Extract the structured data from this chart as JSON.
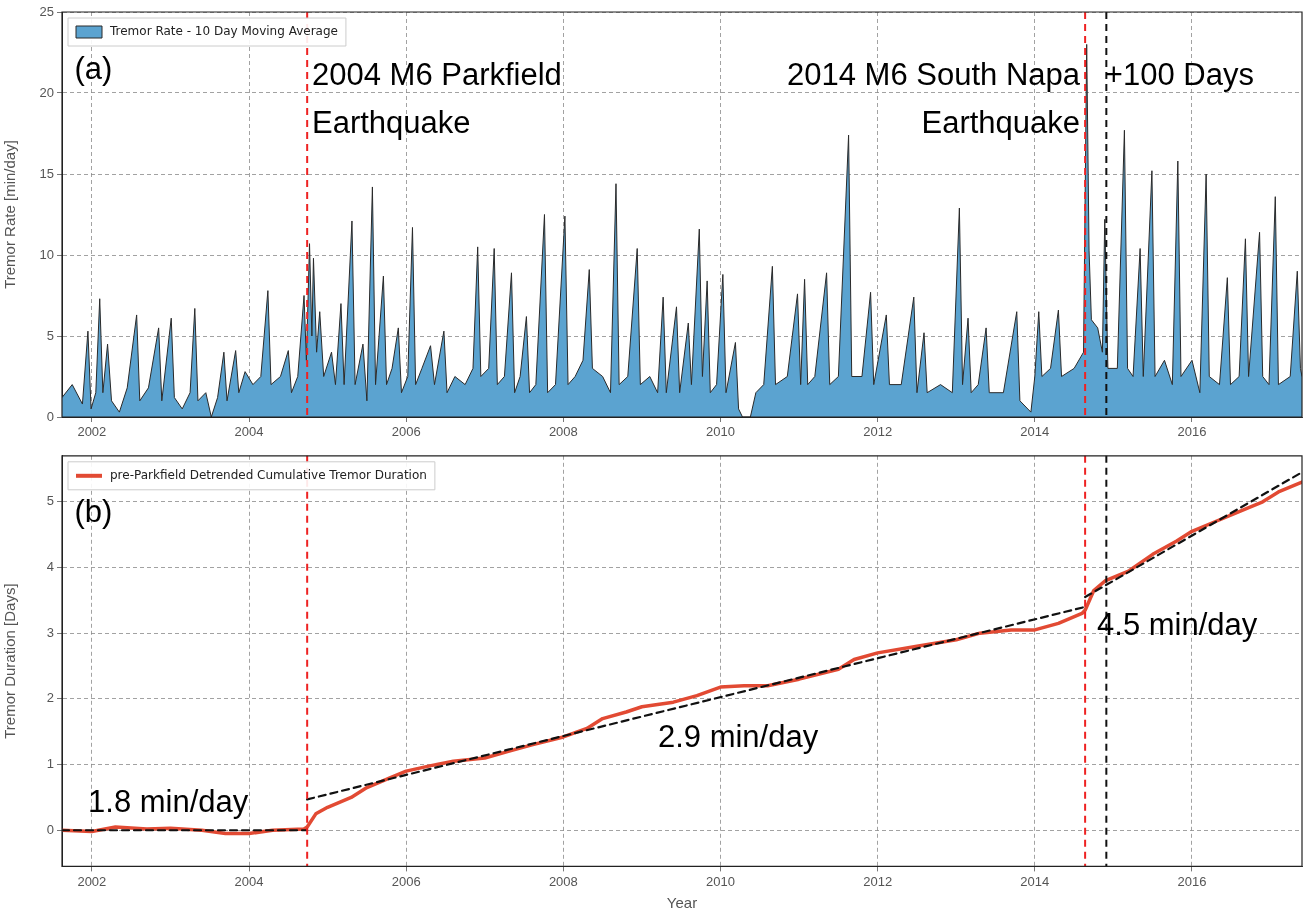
{
  "chart_data": [
    {
      "type": "area",
      "ylabel": "Tremor Rate [min/day]",
      "xlim": [
        2001.62,
        2017.4
      ],
      "xticks": [
        2002,
        2004,
        2006,
        2008,
        2010,
        2012,
        2014,
        2016
      ],
      "ylim": [
        0,
        25
      ],
      "yticks": [
        0,
        5,
        10,
        15,
        20,
        25
      ],
      "grid": true,
      "legend": "top left",
      "series": [
        {
          "name": "Tremor Rate - 10 Day Moving Average",
          "color": "#5ba3d0",
          "x": [
            2001.62,
            2001.75,
            2001.88,
            2001.95,
            2001.99,
            2002.05,
            2002.1,
            2002.14,
            2002.2,
            2002.25,
            2002.35,
            2002.45,
            2002.57,
            2002.61,
            2002.72,
            2002.85,
            2002.89,
            2003.01,
            2003.05,
            2003.15,
            2003.25,
            2003.31,
            2003.35,
            2003.45,
            2003.52,
            2003.6,
            2003.68,
            2003.72,
            2003.83,
            2003.87,
            2003.95,
            2004.05,
            2004.15,
            2004.24,
            2004.28,
            2004.4,
            2004.5,
            2004.54,
            2004.62,
            2004.7,
            2004.73,
            2004.77,
            2004.8,
            2004.82,
            2004.86,
            2004.9,
            2004.95,
            2005.05,
            2005.1,
            2005.17,
            2005.21,
            2005.31,
            2005.35,
            2005.45,
            2005.5,
            2005.57,
            2005.61,
            2005.71,
            2005.75,
            2005.82,
            2005.9,
            2005.94,
            2006.02,
            2006.08,
            2006.12,
            2006.2,
            2006.31,
            2006.36,
            2006.48,
            2006.52,
            2006.62,
            2006.75,
            2006.85,
            2006.91,
            2006.95,
            2007.05,
            2007.12,
            2007.16,
            2007.25,
            2007.34,
            2007.38,
            2007.45,
            2007.53,
            2007.57,
            2007.65,
            2007.76,
            2007.8,
            2007.9,
            2008.02,
            2008.06,
            2008.15,
            2008.25,
            2008.33,
            2008.37,
            2008.5,
            2008.6,
            2008.67,
            2008.71,
            2008.82,
            2008.94,
            2008.98,
            2009.1,
            2009.2,
            2009.27,
            2009.31,
            2009.44,
            2009.48,
            2009.59,
            2009.63,
            2009.73,
            2009.77,
            2009.83,
            2009.87,
            2009.95,
            2010.03,
            2010.07,
            2010.19,
            2010.23,
            2010.28,
            2010.38,
            2010.45,
            2010.55,
            2010.66,
            2010.7,
            2010.85,
            2010.98,
            2011.02,
            2011.07,
            2011.11,
            2011.2,
            2011.35,
            2011.39,
            2011.5,
            2011.63,
            2011.67,
            2011.8,
            2011.91,
            2011.95,
            2012.11,
            2012.15,
            2012.3,
            2012.46,
            2012.5,
            2012.59,
            2012.63,
            2012.8,
            2012.95,
            2013.04,
            2013.08,
            2013.15,
            2013.19,
            2013.28,
            2013.38,
            2013.42,
            2013.6,
            2013.77,
            2013.81,
            2013.95,
            2014.0,
            2014.05,
            2014.09,
            2014.2,
            2014.3,
            2014.34,
            2014.5,
            2014.62,
            2014.66,
            2014.69,
            2014.72,
            2014.8,
            2014.86,
            2014.89,
            2014.93,
            2015.05,
            2015.14,
            2015.18,
            2015.25,
            2015.34,
            2015.38,
            2015.49,
            2015.53,
            2015.65,
            2015.75,
            2015.82,
            2015.86,
            2016.0,
            2016.1,
            2016.18,
            2016.22,
            2016.35,
            2016.45,
            2016.49,
            2016.6,
            2016.68,
            2016.72,
            2016.86,
            2016.9,
            2016.98,
            2017.06,
            2017.1,
            2017.25,
            2017.34,
            2017.38,
            2017.4
          ],
          "values": [
            1.2,
            2.0,
            0.8,
            5.3,
            0.5,
            1.5,
            7.3,
            1.5,
            4.5,
            1.0,
            0.3,
            1.8,
            6.3,
            1.0,
            1.8,
            5.5,
            1.0,
            6.1,
            1.2,
            0.5,
            1.5,
            6.7,
            1.0,
            1.5,
            0.0,
            1.2,
            4.0,
            1.0,
            4.1,
            1.5,
            2.8,
            2.0,
            2.5,
            7.8,
            2.0,
            2.5,
            4.1,
            1.5,
            2.5,
            7.5,
            3.5,
            10.7,
            5.0,
            9.8,
            4.0,
            6.5,
            2.5,
            4.0,
            2.0,
            7.0,
            2.0,
            12.1,
            2.0,
            4.5,
            1.0,
            14.2,
            2.0,
            8.7,
            2.0,
            3.0,
            5.5,
            1.5,
            2.5,
            11.7,
            2.0,
            3.0,
            4.4,
            2.0,
            5.3,
            1.5,
            2.5,
            2.0,
            3.0,
            10.5,
            2.5,
            3.0,
            10.4,
            2.0,
            2.5,
            8.9,
            1.5,
            2.5,
            6.2,
            1.5,
            2.0,
            12.5,
            1.5,
            2.0,
            12.4,
            2.0,
            2.5,
            3.5,
            9.1,
            3.0,
            2.5,
            1.5,
            14.4,
            2.0,
            2.5,
            10.4,
            2.0,
            2.5,
            1.5,
            7.4,
            1.5,
            6.8,
            1.5,
            5.8,
            2.0,
            11.6,
            2.5,
            8.4,
            1.5,
            2.0,
            8.8,
            1.5,
            4.6,
            0.5,
            0.0,
            0.0,
            1.5,
            2.0,
            9.3,
            2.0,
            2.5,
            7.6,
            2.0,
            8.5,
            2.0,
            2.5,
            8.9,
            2.0,
            2.5,
            17.4,
            2.5,
            2.5,
            7.7,
            2.0,
            6.3,
            2.0,
            2.0,
            7.4,
            1.5,
            5.2,
            1.5,
            2.0,
            1.5,
            12.9,
            2.0,
            6.1,
            1.5,
            2.0,
            5.5,
            1.5,
            1.5,
            6.5,
            1.0,
            0.3,
            2.5,
            6.5,
            2.5,
            3.0,
            6.6,
            2.5,
            3.0,
            4.0,
            23.0,
            10.3,
            6.0,
            5.5,
            4.0,
            12.2,
            3.0,
            3.0,
            17.7,
            3.0,
            2.5,
            10.4,
            2.5,
            15.2,
            2.5,
            3.5,
            2.0,
            15.8,
            2.5,
            3.5,
            1.5,
            15.0,
            2.5,
            2.0,
            8.6,
            2.0,
            2.5,
            11.0,
            2.5,
            11.4,
            2.5,
            2.0,
            13.6,
            2.0,
            2.5,
            9.0,
            3.0,
            2.5
          ]
        }
      ],
      "ref_lines": [
        {
          "axis": "x",
          "value": 2004.74,
          "color": "#ee2222",
          "line_style": "dashed"
        },
        {
          "axis": "x",
          "value": 2014.64,
          "color": "#ee2222",
          "line_style": "dashed"
        },
        {
          "axis": "x",
          "value": 2014.91,
          "color": "#111111",
          "line_style": "dashed"
        }
      ],
      "annotations": [
        "(a)",
        "2004 M6 Parkfield\nEarthquake",
        "2014 M6 South Napa\nEarthquake",
        "+100 Days"
      ]
    },
    {
      "type": "line",
      "xlabel": "Year",
      "ylabel": "Tremor Duration [Days]",
      "xlim": [
        2001.62,
        2017.4
      ],
      "xticks": [
        2002,
        2004,
        2006,
        2008,
        2010,
        2012,
        2014,
        2016
      ],
      "ylim": [
        -0.55,
        5.7
      ],
      "yticks": [
        0,
        1,
        2,
        3,
        4,
        5
      ],
      "grid": true,
      "legend": "top left",
      "series": [
        {
          "name": "pre-Parkfield Detrended Cumulative Tremor Duration",
          "color": "#e24a33",
          "x": [
            2001.62,
            2002.0,
            2002.3,
            2002.7,
            2003.0,
            2003.4,
            2003.7,
            2004.0,
            2004.3,
            2004.7,
            2004.74,
            2004.85,
            2005.0,
            2005.3,
            2005.5,
            2005.8,
            2006.0,
            2006.3,
            2006.6,
            2007.0,
            2007.3,
            2007.6,
            2008.0,
            2008.3,
            2008.5,
            2008.8,
            2009.0,
            2009.4,
            2009.7,
            2010.0,
            2010.3,
            2010.6,
            2011.0,
            2011.5,
            2011.7,
            2012.0,
            2012.5,
            2013.0,
            2013.3,
            2013.7,
            2014.0,
            2014.3,
            2014.6,
            2014.64,
            2014.75,
            2014.9,
            2015.2,
            2015.5,
            2015.8,
            2016.0,
            2016.3,
            2016.6,
            2016.9,
            2017.1,
            2017.4
          ],
          "values": [
            0.0,
            -0.02,
            0.05,
            0.02,
            0.03,
            0.0,
            -0.05,
            -0.05,
            0.0,
            0.02,
            0.05,
            0.25,
            0.35,
            0.5,
            0.65,
            0.8,
            0.9,
            0.98,
            1.05,
            1.1,
            1.2,
            1.3,
            1.42,
            1.55,
            1.7,
            1.8,
            1.88,
            1.95,
            2.05,
            2.18,
            2.2,
            2.2,
            2.3,
            2.45,
            2.6,
            2.7,
            2.8,
            2.9,
            3.0,
            3.05,
            3.05,
            3.15,
            3.3,
            3.35,
            3.65,
            3.8,
            3.95,
            4.2,
            4.4,
            4.55,
            4.7,
            4.85,
            5.0,
            5.15,
            5.3
          ]
        },
        {
          "type": "line",
          "color": "#111111",
          "line_style": "dashed",
          "x": [
            2001.62,
            2004.74
          ],
          "values": [
            0.0,
            0.0
          ]
        },
        {
          "type": "line",
          "color": "#111111",
          "line_style": "dashed",
          "x": [
            2004.74,
            2014.64
          ],
          "values": [
            0.47,
            3.4
          ]
        },
        {
          "type": "line",
          "color": "#111111",
          "line_style": "dashed",
          "x": [
            2014.64,
            2017.4
          ],
          "values": [
            3.55,
            5.45
          ]
        }
      ],
      "ref_lines": [
        {
          "axis": "x",
          "value": 2004.74,
          "color": "#ee2222",
          "line_style": "dashed"
        },
        {
          "axis": "x",
          "value": 2014.64,
          "color": "#ee2222",
          "line_style": "dashed"
        },
        {
          "axis": "x",
          "value": 2014.91,
          "color": "#111111",
          "line_style": "dashed"
        }
      ],
      "annotations": [
        "(b)",
        "1.8 min/day",
        "2.9 min/day",
        "4.5 min/day"
      ]
    }
  ]
}
